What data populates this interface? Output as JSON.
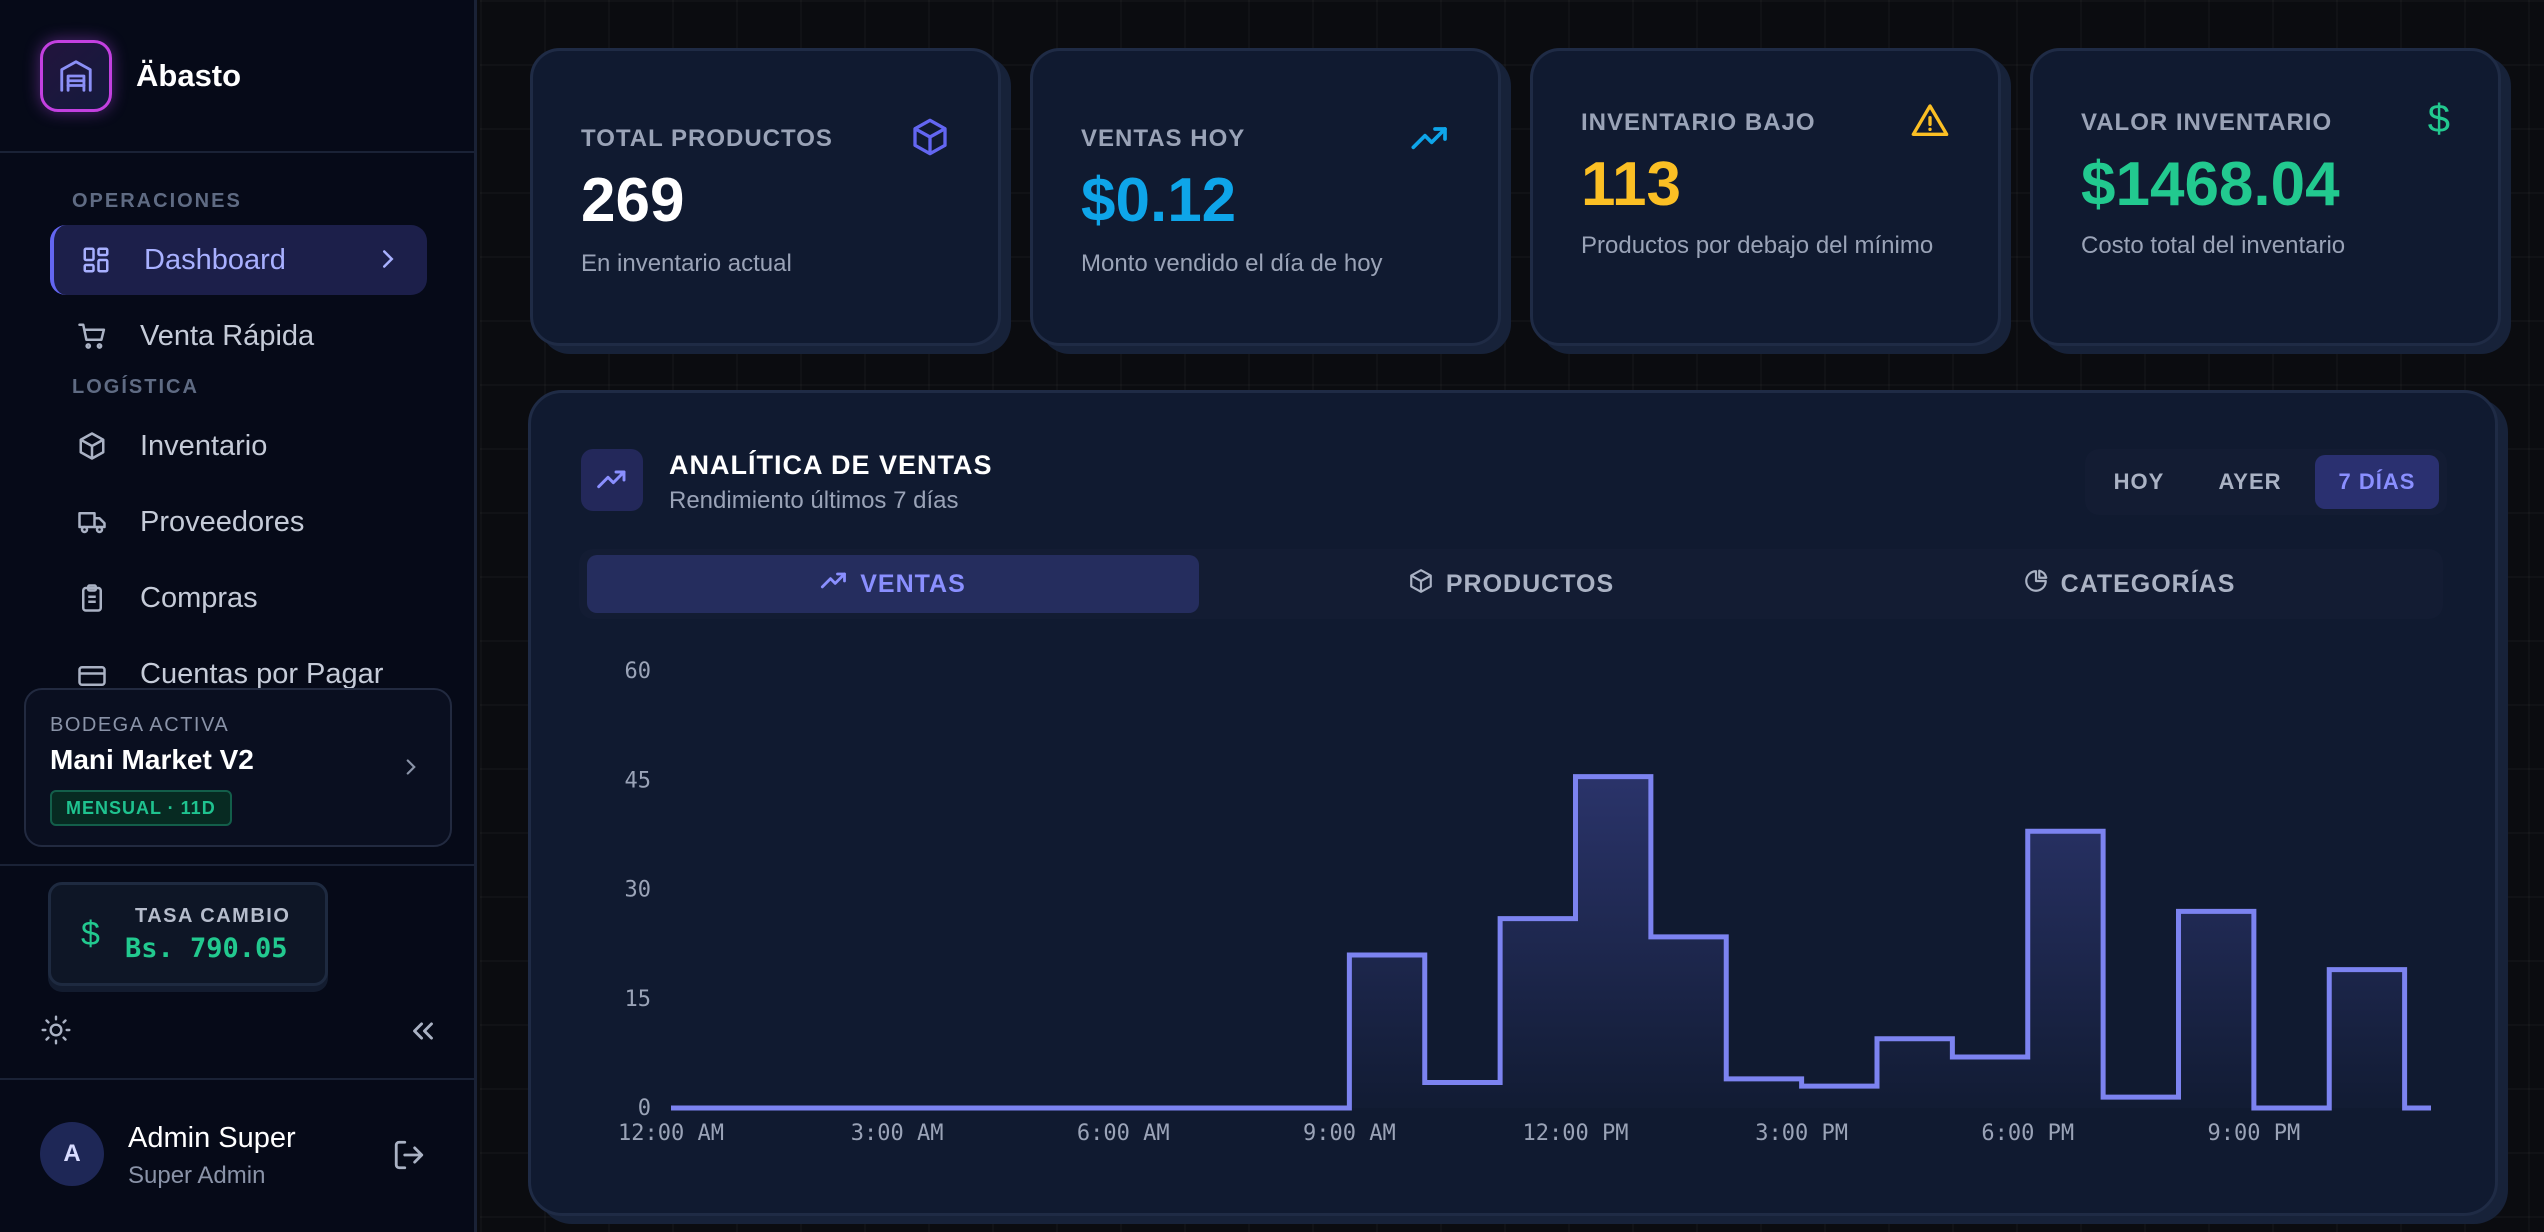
{
  "brand": {
    "name": "Äbasto"
  },
  "sidebar": {
    "sections": [
      {
        "label": "OPERACIONES"
      },
      {
        "label": "LOGÍSTICA"
      }
    ],
    "items": [
      {
        "label": "Dashboard",
        "icon": "dashboard-icon",
        "active": true
      },
      {
        "label": "Venta Rápida",
        "icon": "cart-icon"
      },
      {
        "label": "Inventario",
        "icon": "box-icon"
      },
      {
        "label": "Proveedores",
        "icon": "truck-icon"
      },
      {
        "label": "Compras",
        "icon": "clipboard-icon"
      },
      {
        "label": "Cuentas por Pagar",
        "icon": "credit-card-icon"
      }
    ],
    "warehouse": {
      "label": "BODEGA ACTIVA",
      "name": "Mani Market V2",
      "badge": "MENSUAL · 11D"
    },
    "exchange": {
      "label": "TASA CAMBIO",
      "value": "Bs. 790.05"
    },
    "user": {
      "initial": "A",
      "name": "Admin Super",
      "role": "Super Admin"
    }
  },
  "cards": [
    {
      "title": "TOTAL PRODUCTOS",
      "value": "269",
      "subtitle": "En inventario actual",
      "color": "#ffffff",
      "icon": "box-icon",
      "icon_color": "#6366f1"
    },
    {
      "title": "VENTAS HOY",
      "value": "$0.12",
      "subtitle": "Monto vendido el día de hoy",
      "color": "#0ea5e9",
      "icon": "trending-up-icon",
      "icon_color": "#0ea5e9"
    },
    {
      "title": "INVENTARIO BAJO",
      "value": "113",
      "subtitle": "Productos por debajo del mínimo",
      "color": "#fbbf24",
      "icon": "warning-icon",
      "icon_color": "#fbbf24"
    },
    {
      "title": "VALOR INVENTARIO",
      "value": "$1468.04",
      "subtitle": "Costo total del inventario",
      "color": "#22c98f",
      "icon": "dollar-icon",
      "icon_color": "#22c98f"
    }
  ],
  "analytics": {
    "title": "ANALÍTICA DE VENTAS",
    "subtitle": "Rendimiento últimos 7 días",
    "ranges": [
      {
        "label": "HOY"
      },
      {
        "label": "AYER"
      },
      {
        "label": "7 DÍAS",
        "selected": true
      }
    ],
    "tabs": [
      {
        "label": "VENTAS",
        "icon": "trending-up-icon",
        "selected": true
      },
      {
        "label": "PRODUCTOS",
        "icon": "box-icon"
      },
      {
        "label": "CATEGORÍAS",
        "icon": "pie-chart-icon"
      }
    ]
  },
  "chart_data": {
    "type": "line",
    "step": true,
    "x": [
      "12:00 AM",
      "1:00 AM",
      "2:00 AM",
      "3:00 AM",
      "4:00 AM",
      "5:00 AM",
      "6:00 AM",
      "7:00 AM",
      "8:00 AM",
      "9:00 AM",
      "10:00 AM",
      "11:00 AM",
      "12:00 PM",
      "1:00 PM",
      "2:00 PM",
      "3:00 PM",
      "4:00 PM",
      "5:00 PM",
      "6:00 PM",
      "7:00 PM",
      "8:00 PM",
      "9:00 PM",
      "10:00 PM",
      "11:00 PM"
    ],
    "xticks": [
      "12:00 AM",
      "3:00 AM",
      "6:00 AM",
      "9:00 AM",
      "12:00 PM",
      "3:00 PM",
      "6:00 PM",
      "9:00 PM"
    ],
    "values": [
      0,
      0,
      0,
      0,
      0,
      0,
      0,
      0,
      0,
      21,
      3.5,
      26,
      45.5,
      23.5,
      4,
      3,
      9.5,
      7,
      38,
      1.5,
      27,
      0,
      19,
      0
    ],
    "yticks": [
      0,
      15,
      30,
      45,
      60
    ],
    "ylim": [
      0,
      60
    ],
    "color": "#7c83f0"
  }
}
